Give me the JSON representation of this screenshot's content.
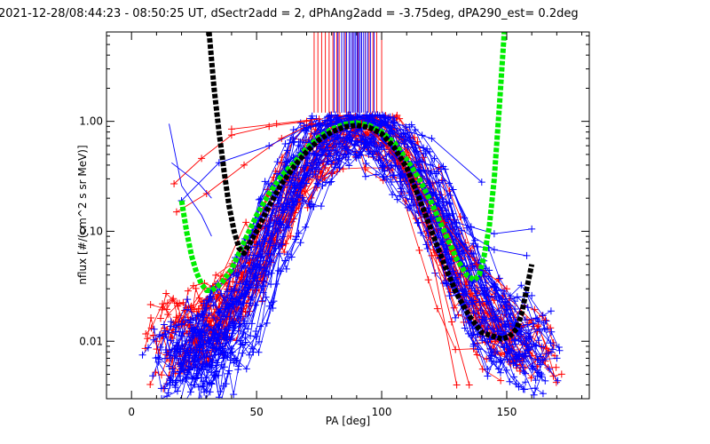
{
  "chart_data": {
    "type": "line",
    "title": "2021-12-28/08:44:23 - 08:50:25 UT, dSectr2add = 2, dPhAng2add = -3.75deg, dPA290_est=   0.2deg",
    "xlabel": "PA [deg]",
    "ylabel": "nflux [#/(cm^2 s sr MeV)]",
    "xlim": [
      -10,
      183
    ],
    "ylim": [
      0.003,
      6.5
    ],
    "yscale": "log",
    "x_ticks": [
      0,
      50,
      100,
      150
    ],
    "x_tick_labels": [
      "0",
      "50",
      "100",
      "150"
    ],
    "y_ticks": [
      0.01,
      0.1,
      1.0
    ],
    "y_tick_labels": [
      "0.01",
      "0.10",
      "1.00"
    ],
    "grid": false,
    "legend": "none",
    "colors": {
      "red_series": "#ff0000",
      "blue_series": "#0000ff",
      "black_fit": "#000000",
      "green_fit": "#00ee00"
    },
    "fits": [
      {
        "color": "#00ee00",
        "x": [
          20,
          22,
          24,
          26,
          28,
          30,
          32,
          34,
          36,
          40,
          45,
          50,
          55,
          60,
          65,
          70,
          75,
          80,
          85,
          90,
          95,
          100,
          105,
          110,
          115,
          120,
          125,
          130,
          134,
          137,
          139,
          141,
          143,
          145,
          147,
          149
        ],
        "y": [
          0.19,
          0.1,
          0.06,
          0.042,
          0.033,
          0.029,
          0.029,
          0.031,
          0.034,
          0.045,
          0.08,
          0.14,
          0.22,
          0.32,
          0.42,
          0.57,
          0.72,
          0.85,
          0.94,
          0.97,
          0.92,
          0.8,
          0.64,
          0.45,
          0.3,
          0.18,
          0.1,
          0.056,
          0.04,
          0.036,
          0.04,
          0.06,
          0.11,
          0.3,
          1.3,
          6.5
        ]
      },
      {
        "color": "#000000",
        "x": [
          31,
          33,
          35,
          37,
          39,
          41,
          43,
          45,
          50,
          55,
          60,
          65,
          70,
          75,
          80,
          85,
          90,
          95,
          100,
          105,
          110,
          115,
          120,
          125,
          130,
          135,
          140,
          145,
          148,
          151,
          154,
          156,
          158,
          160
        ],
        "y": [
          6.5,
          2.0,
          0.8,
          0.35,
          0.17,
          0.1,
          0.07,
          0.063,
          0.1,
          0.17,
          0.27,
          0.39,
          0.53,
          0.68,
          0.8,
          0.89,
          0.92,
          0.88,
          0.77,
          0.58,
          0.38,
          0.2,
          0.1,
          0.05,
          0.027,
          0.017,
          0.012,
          0.011,
          0.0105,
          0.011,
          0.013,
          0.018,
          0.03,
          0.05
        ]
      }
    ],
    "clipped_peak_lines": {
      "red_x": [
        73,
        74.5,
        76,
        77.5,
        79,
        80.5,
        82,
        83,
        84,
        85.5,
        87,
        88.5,
        90.5,
        92,
        93.5,
        95,
        96.5,
        98,
        100
      ],
      "blue_x": [
        81,
        82.5,
        84,
        85,
        86,
        87,
        87.7,
        88.4,
        89,
        89.6,
        90.2,
        90.8,
        91.4,
        92,
        92.8,
        93.6,
        94.5,
        95.5,
        97
      ],
      "bottom_y": 1.2
    },
    "blue_left_stub": [
      [
        [
          15,
          0.95
        ],
        [
          20,
          0.26
        ],
        [
          24,
          0.19
        ],
        [
          28,
          0.14
        ],
        [
          32,
          0.09
        ]
      ],
      [
        [
          16,
          0.42
        ],
        [
          22,
          0.33
        ],
        [
          27,
          0.27
        ],
        [
          32,
          0.2
        ]
      ]
    ],
    "red_groups": [
      {
        "xs": [
          17,
          22,
          28,
          35,
          45,
          55,
          65,
          75,
          85,
          92,
          100,
          110,
          120,
          128,
          135,
          145,
          155,
          162
        ],
        "ys": [
          0.008,
          0.009,
          0.011,
          0.014,
          0.03,
          0.08,
          0.2,
          0.45,
          0.75,
          0.85,
          0.72,
          0.38,
          0.15,
          0.06,
          0.025,
          0.012,
          0.009,
          0.007
        ],
        "count": 18,
        "jitter": 0.55
      },
      {
        "xs": [
          17,
          22,
          30,
          40,
          50,
          58,
          65,
          75,
          85,
          92,
          100,
          110,
          118,
          126,
          135,
          145,
          155,
          162
        ],
        "ys": [
          0.012,
          0.013,
          0.016,
          0.022,
          0.05,
          0.12,
          0.3,
          0.55,
          0.85,
          0.95,
          0.8,
          0.45,
          0.2,
          0.07,
          0.025,
          0.012,
          0.009,
          0.007
        ],
        "count": 10,
        "jitter": 0.45
      }
    ],
    "blue_groups": [
      {
        "xs": [
          17,
          22,
          30,
          40,
          50,
          58,
          65,
          75,
          85,
          92,
          100,
          110,
          120,
          128,
          135,
          145,
          155,
          162
        ],
        "ys": [
          0.005,
          0.006,
          0.008,
          0.012,
          0.04,
          0.12,
          0.3,
          0.6,
          0.85,
          0.9,
          0.75,
          0.42,
          0.17,
          0.07,
          0.028,
          0.013,
          0.008,
          0.006
        ],
        "count": 26,
        "jitter": 0.55
      },
      {
        "xs": [
          17,
          22,
          30,
          40,
          50,
          58,
          65,
          75,
          85,
          92,
          100,
          110,
          120,
          128,
          135,
          145,
          155,
          162
        ],
        "ys": [
          0.008,
          0.009,
          0.012,
          0.02,
          0.06,
          0.18,
          0.38,
          0.65,
          0.85,
          0.88,
          0.78,
          0.5,
          0.25,
          0.1,
          0.04,
          0.018,
          0.012,
          0.009
        ],
        "count": 12,
        "jitter": 0.4
      }
    ],
    "outlier_lines": [
      {
        "color": "#ff0000",
        "points": [
          [
            17,
            0.27
          ],
          [
            28,
            0.46
          ],
          [
            40,
            0.75
          ],
          [
            55,
            0.9
          ],
          [
            70,
            1.0
          ]
        ]
      },
      {
        "color": "#ff0000",
        "points": [
          [
            18,
            0.15
          ],
          [
            30,
            0.22
          ],
          [
            45,
            0.4
          ],
          [
            60,
            0.7
          ],
          [
            72,
            0.95
          ]
        ]
      },
      {
        "color": "#ff0000",
        "points": [
          [
            40,
            0.85
          ],
          [
            58,
            0.95
          ],
          [
            75,
            1.05
          ]
        ]
      },
      {
        "color": "#0000ff",
        "points": [
          [
            20,
            0.19
          ],
          [
            35,
            0.42
          ],
          [
            55,
            0.6
          ],
          [
            70,
            0.88
          ],
          [
            85,
            0.98
          ]
        ]
      },
      {
        "color": "#0000ff",
        "points": [
          [
            100,
            0.95
          ],
          [
            120,
            0.7
          ],
          [
            140,
            0.28
          ]
        ]
      },
      {
        "color": "#0000ff",
        "points": [
          [
            115,
            0.35
          ],
          [
            130,
            0.12
          ],
          [
            145,
            0.095
          ],
          [
            160,
            0.105
          ]
        ]
      },
      {
        "color": "#0000ff",
        "points": [
          [
            118,
            0.22
          ],
          [
            130,
            0.11
          ],
          [
            145,
            0.068
          ],
          [
            158,
            0.06
          ]
        ]
      },
      {
        "color": "#0000ff",
        "points": [
          [
            125,
            0.12
          ],
          [
            135,
            0.04
          ],
          [
            148,
            0.024
          ],
          [
            160,
            0.026
          ]
        ]
      },
      {
        "color": "#ff0000",
        "points": [
          [
            112,
            0.3
          ],
          [
            125,
            0.12
          ],
          [
            138,
            0.05
          ],
          [
            150,
            0.03
          ]
        ]
      },
      {
        "color": "#ff0000",
        "points": [
          [
            92,
            0.95
          ],
          [
            108,
            0.45
          ],
          [
            118,
            0.12
          ],
          [
            128,
            0.015
          ],
          [
            135,
            0.004
          ]
        ]
      },
      {
        "color": "#ff0000",
        "points": [
          [
            95,
            0.9
          ],
          [
            110,
            0.35
          ],
          [
            120,
            0.06
          ],
          [
            130,
            0.004
          ]
        ]
      }
    ]
  }
}
